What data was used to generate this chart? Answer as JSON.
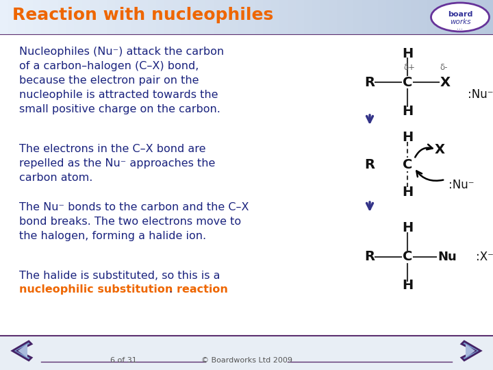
{
  "title": "Reaction with nucleophiles",
  "title_color": "#EE6600",
  "bg_color": "#FFFFFF",
  "header_bg_left": "#DDEAF5",
  "header_bg_right": "#C8D8E8",
  "body_text_color": "#1A237E",
  "highlight_color": "#EE6600",
  "footer_bar_color": "#EAEEF5",
  "footer_line_color": "#5C3070",
  "footer_text": "© Boardworks Ltd 2009",
  "page_text": "6 of 31",
  "atom_color": "#111111",
  "bond_color": "#333333",
  "blue_arrow_color": "#333388"
}
